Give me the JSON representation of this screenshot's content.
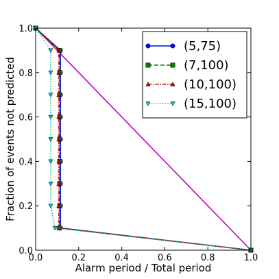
{
  "chart_data": {
    "type": "line",
    "xlabel": "Alarm period / Total period",
    "ylabel": "Fraction of events not predicted",
    "xlim": [
      0.0,
      1.0
    ],
    "ylim": [
      0.0,
      1.0
    ],
    "xticks": [
      "0.0",
      "0.2",
      "0.4",
      "0.6",
      "0.8",
      "1.0"
    ],
    "yticks": [
      "0.0",
      "0.2",
      "0.4",
      "0.6",
      "0.8",
      "1.0"
    ],
    "grid": false,
    "legend_position": "top-right",
    "reference_line": {
      "color": "#bf00bf",
      "points": [
        [
          0.0,
          1.0
        ],
        [
          1.0,
          0.0
        ]
      ]
    },
    "series": [
      {
        "name": "(5,75)",
        "color": "#0000ff",
        "marker": "circle",
        "dash": "solid",
        "points": [
          [
            0.0,
            1.0
          ],
          [
            0.115,
            0.9
          ],
          [
            0.115,
            0.8
          ],
          [
            0.115,
            0.7
          ],
          [
            0.115,
            0.6
          ],
          [
            0.115,
            0.5
          ],
          [
            0.115,
            0.4
          ],
          [
            0.115,
            0.3
          ],
          [
            0.115,
            0.2
          ],
          [
            0.115,
            0.1
          ],
          [
            1.0,
            0.0
          ]
        ]
      },
      {
        "name": "(7,100)",
        "color": "#008000",
        "marker": "square",
        "dash": "dashed",
        "points": [
          [
            0.0,
            1.0
          ],
          [
            0.112,
            0.9
          ],
          [
            0.112,
            0.8
          ],
          [
            0.112,
            0.7
          ],
          [
            0.112,
            0.6
          ],
          [
            0.112,
            0.5
          ],
          [
            0.112,
            0.4
          ],
          [
            0.112,
            0.3
          ],
          [
            0.112,
            0.2
          ],
          [
            0.112,
            0.1
          ],
          [
            1.0,
            0.0
          ]
        ]
      },
      {
        "name": "(10,100)",
        "color": "#cc0000",
        "marker": "triangle-up",
        "dash": "dashdot",
        "points": [
          [
            0.0,
            1.0
          ],
          [
            0.108,
            0.9
          ],
          [
            0.108,
            0.8
          ],
          [
            0.108,
            0.7
          ],
          [
            0.108,
            0.6
          ],
          [
            0.108,
            0.5
          ],
          [
            0.108,
            0.4
          ],
          [
            0.108,
            0.3
          ],
          [
            0.108,
            0.2
          ],
          [
            0.108,
            0.1
          ],
          [
            1.0,
            0.0
          ]
        ]
      },
      {
        "name": "(15,100)",
        "color": "#00bfbf",
        "marker": "triangle-down",
        "dash": "dotted",
        "points": [
          [
            0.0,
            1.0
          ],
          [
            0.07,
            0.9
          ],
          [
            0.07,
            0.8
          ],
          [
            0.07,
            0.7
          ],
          [
            0.07,
            0.6
          ],
          [
            0.07,
            0.5
          ],
          [
            0.07,
            0.4
          ],
          [
            0.07,
            0.3
          ],
          [
            0.07,
            0.2
          ],
          [
            0.09,
            0.1
          ],
          [
            1.0,
            0.0
          ]
        ]
      }
    ]
  }
}
